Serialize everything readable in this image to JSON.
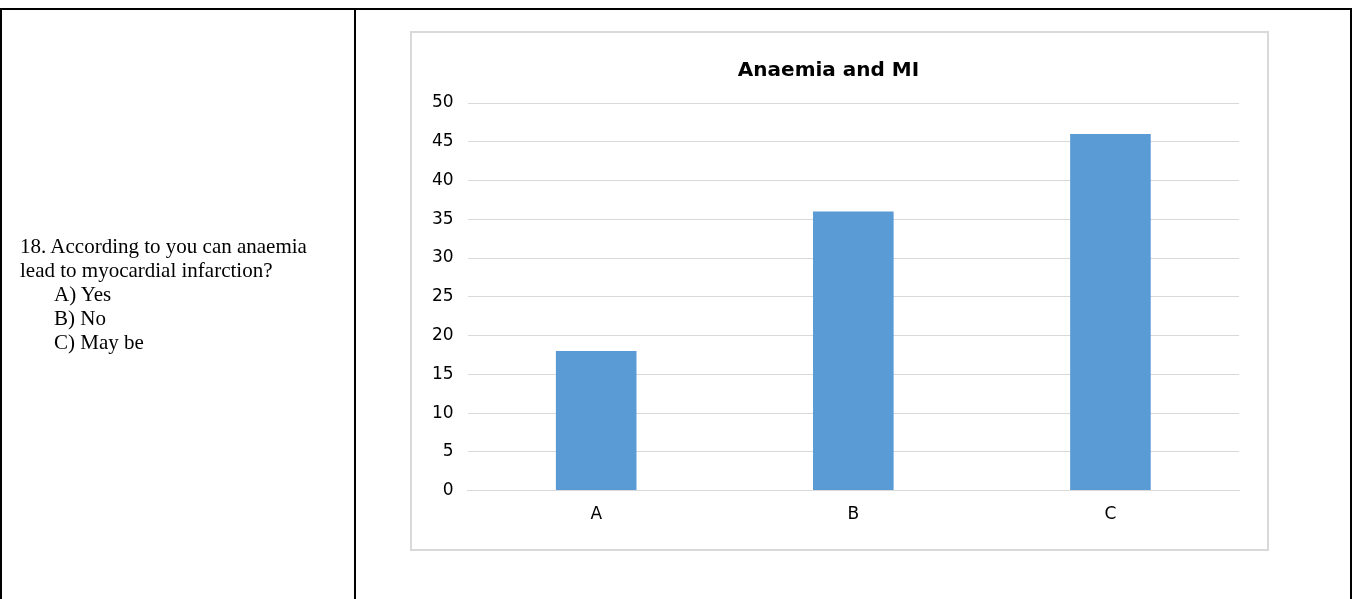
{
  "chart_data": {
    "type": "bar",
    "title": "Anaemia and MI",
    "categories": [
      "A",
      "B",
      "C"
    ],
    "values": [
      18,
      36,
      46
    ],
    "color": "#5b9bd5",
    "ylim": [
      0,
      50
    ],
    "yticks": [
      0,
      5,
      10,
      15,
      20,
      25,
      30,
      35,
      40,
      45,
      50
    ],
    "grid": "y",
    "legend": false,
    "annotations": [
      "18. According to you can anaemia lead to myocardial infarction?",
      "A) Yes",
      "B) No",
      "C) May be"
    ]
  }
}
